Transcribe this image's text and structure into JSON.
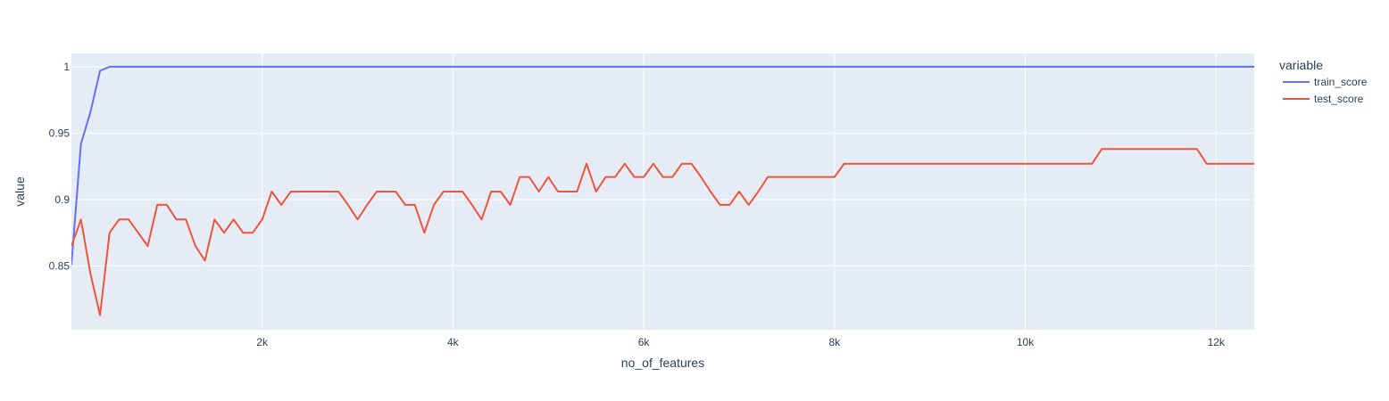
{
  "chart_data": {
    "type": "line",
    "xlabel": "no_of_features",
    "ylabel": "value",
    "xlim": [
      1,
      12400
    ],
    "ylim": [
      0.802,
      1.01
    ],
    "x_ticks": [
      2000,
      4000,
      6000,
      8000,
      10000,
      12000
    ],
    "x_tick_labels": [
      "2k",
      "4k",
      "6k",
      "8k",
      "10k",
      "12k"
    ],
    "y_ticks": [
      0.85,
      0.9,
      0.95,
      1
    ],
    "y_tick_labels": [
      "0.85",
      "0.9",
      "0.95",
      "1"
    ],
    "grid": true,
    "plot_background": "#e5ecf6",
    "legend": {
      "title": "variable",
      "placement": "right"
    },
    "series": [
      {
        "name": "train_score",
        "color": "#636efa",
        "points": [
          [
            1,
            0.851
          ],
          [
            101,
            0.942
          ],
          [
            201,
            0.966
          ],
          [
            301,
            0.997
          ],
          [
            401,
            1.0
          ],
          [
            12400,
            1.0
          ]
        ]
      },
      {
        "name": "test_score",
        "color": "#ef553b",
        "points": [
          [
            1,
            0.865
          ],
          [
            101,
            0.885
          ],
          [
            201,
            0.844
          ],
          [
            301,
            0.813
          ],
          [
            401,
            0.875
          ],
          [
            501,
            0.885
          ],
          [
            601,
            0.885
          ],
          [
            701,
            0.875
          ],
          [
            801,
            0.865
          ],
          [
            901,
            0.896
          ],
          [
            1001,
            0.896
          ],
          [
            1101,
            0.885
          ],
          [
            1201,
            0.885
          ],
          [
            1301,
            0.865
          ],
          [
            1401,
            0.854
          ],
          [
            1501,
            0.885
          ],
          [
            1601,
            0.875
          ],
          [
            1701,
            0.885
          ],
          [
            1801,
            0.875
          ],
          [
            1901,
            0.875
          ],
          [
            2001,
            0.885
          ],
          [
            2101,
            0.906
          ],
          [
            2201,
            0.896
          ],
          [
            2301,
            0.906
          ],
          [
            2401,
            0.906
          ],
          [
            2501,
            0.906
          ],
          [
            2601,
            0.906
          ],
          [
            2701,
            0.906
          ],
          [
            2801,
            0.906
          ],
          [
            2901,
            0.896
          ],
          [
            3001,
            0.885
          ],
          [
            3101,
            0.896
          ],
          [
            3201,
            0.906
          ],
          [
            3301,
            0.906
          ],
          [
            3401,
            0.906
          ],
          [
            3501,
            0.896
          ],
          [
            3601,
            0.896
          ],
          [
            3701,
            0.875
          ],
          [
            3801,
            0.896
          ],
          [
            3901,
            0.906
          ],
          [
            4001,
            0.906
          ],
          [
            4101,
            0.906
          ],
          [
            4201,
            0.896
          ],
          [
            4301,
            0.885
          ],
          [
            4401,
            0.906
          ],
          [
            4501,
            0.906
          ],
          [
            4601,
            0.896
          ],
          [
            4701,
            0.917
          ],
          [
            4801,
            0.917
          ],
          [
            4901,
            0.906
          ],
          [
            5001,
            0.917
          ],
          [
            5101,
            0.906
          ],
          [
            5201,
            0.906
          ],
          [
            5301,
            0.906
          ],
          [
            5401,
            0.927
          ],
          [
            5501,
            0.906
          ],
          [
            5601,
            0.917
          ],
          [
            5701,
            0.917
          ],
          [
            5801,
            0.927
          ],
          [
            5901,
            0.917
          ],
          [
            6001,
            0.917
          ],
          [
            6101,
            0.927
          ],
          [
            6201,
            0.917
          ],
          [
            6301,
            0.917
          ],
          [
            6401,
            0.927
          ],
          [
            6501,
            0.927
          ],
          [
            6601,
            0.917
          ],
          [
            6701,
            0.906
          ],
          [
            6801,
            0.896
          ],
          [
            6901,
            0.896
          ],
          [
            7001,
            0.906
          ],
          [
            7101,
            0.896
          ],
          [
            7201,
            0.906
          ],
          [
            7301,
            0.917
          ],
          [
            7401,
            0.917
          ],
          [
            7501,
            0.917
          ],
          [
            7601,
            0.917
          ],
          [
            7701,
            0.917
          ],
          [
            7801,
            0.917
          ],
          [
            7901,
            0.917
          ],
          [
            8001,
            0.917
          ],
          [
            8101,
            0.927
          ],
          [
            8201,
            0.927
          ],
          [
            8301,
            0.927
          ],
          [
            8401,
            0.927
          ],
          [
            8501,
            0.927
          ],
          [
            8601,
            0.927
          ],
          [
            8701,
            0.927
          ],
          [
            8801,
            0.927
          ],
          [
            8901,
            0.927
          ],
          [
            9001,
            0.927
          ],
          [
            9101,
            0.927
          ],
          [
            9201,
            0.927
          ],
          [
            9301,
            0.927
          ],
          [
            9401,
            0.927
          ],
          [
            9501,
            0.927
          ],
          [
            9601,
            0.927
          ],
          [
            9701,
            0.927
          ],
          [
            9801,
            0.927
          ],
          [
            9901,
            0.927
          ],
          [
            10001,
            0.927
          ],
          [
            10101,
            0.927
          ],
          [
            10201,
            0.927
          ],
          [
            10301,
            0.927
          ],
          [
            10401,
            0.927
          ],
          [
            10501,
            0.927
          ],
          [
            10601,
            0.927
          ],
          [
            10701,
            0.927
          ],
          [
            10801,
            0.938
          ],
          [
            10901,
            0.938
          ],
          [
            11001,
            0.938
          ],
          [
            11101,
            0.938
          ],
          [
            11201,
            0.938
          ],
          [
            11301,
            0.938
          ],
          [
            11401,
            0.938
          ],
          [
            11501,
            0.938
          ],
          [
            11601,
            0.938
          ],
          [
            11701,
            0.938
          ],
          [
            11801,
            0.938
          ],
          [
            11901,
            0.927
          ],
          [
            12001,
            0.927
          ],
          [
            12101,
            0.927
          ],
          [
            12201,
            0.927
          ],
          [
            12301,
            0.927
          ],
          [
            12400,
            0.927
          ]
        ]
      }
    ]
  }
}
